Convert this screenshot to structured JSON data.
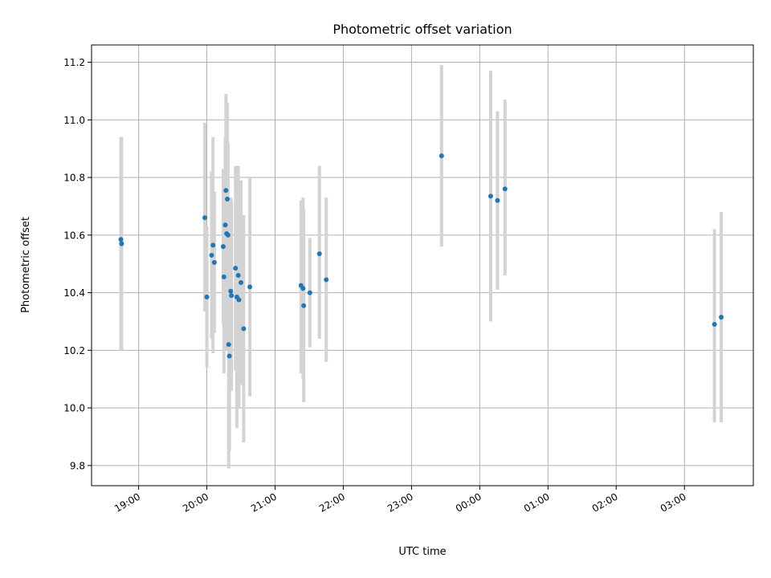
{
  "chart_data": {
    "type": "scatter",
    "title": "Photometric offset variation",
    "xlabel": "UTC time",
    "ylabel": "Photometric offset",
    "x_tick_labels": [
      "19:00",
      "20:00",
      "21:00",
      "22:00",
      "23:00",
      "00:00",
      "01:00",
      "02:00",
      "03:00"
    ],
    "x_ticks_hours": [
      19,
      20,
      21,
      22,
      23,
      24,
      25,
      26,
      27
    ],
    "xlim_hours": [
      18.31,
      28.01
    ],
    "ylim": [
      9.73,
      11.26
    ],
    "y_ticks": [
      9.8,
      10.0,
      10.2,
      10.4,
      10.6,
      10.8,
      11.0,
      11.2
    ],
    "y_tick_labels": [
      "9.8",
      "10.0",
      "10.2",
      "10.4",
      "10.6",
      "10.8",
      "11.0",
      "11.2"
    ],
    "grid": true,
    "colors": {
      "point": "#1f77b4",
      "error_bar": "#d3d3d3",
      "grid": "#b0b0b0"
    },
    "points": [
      {
        "x": 18.74,
        "y": 10.585,
        "err_lo": 10.2,
        "err_hi": 10.94
      },
      {
        "x": 18.75,
        "y": 10.57,
        "err_lo": 10.2,
        "err_hi": 10.94
      },
      {
        "x": 19.97,
        "y": 10.66,
        "err_lo": 10.335,
        "err_hi": 10.99
      },
      {
        "x": 20.0,
        "y": 10.385,
        "err_lo": 10.14,
        "err_hi": 10.63
      },
      {
        "x": 20.07,
        "y": 10.53,
        "err_lo": 10.24,
        "err_hi": 10.82
      },
      {
        "x": 20.09,
        "y": 10.565,
        "err_lo": 10.19,
        "err_hi": 10.94
      },
      {
        "x": 20.11,
        "y": 10.505,
        "err_lo": 10.26,
        "err_hi": 10.75
      },
      {
        "x": 20.24,
        "y": 10.56,
        "err_lo": 10.29,
        "err_hi": 10.83
      },
      {
        "x": 20.25,
        "y": 10.455,
        "err_lo": 10.12,
        "err_hi": 10.79
      },
      {
        "x": 20.27,
        "y": 10.635,
        "err_lo": 10.33,
        "err_hi": 10.94
      },
      {
        "x": 20.28,
        "y": 10.755,
        "err_lo": 10.42,
        "err_hi": 11.09
      },
      {
        "x": 20.29,
        "y": 10.605,
        "err_lo": 10.2,
        "err_hi": 11.01
      },
      {
        "x": 20.3,
        "y": 10.725,
        "err_lo": 10.39,
        "err_hi": 11.06
      },
      {
        "x": 20.31,
        "y": 10.6,
        "err_lo": 10.28,
        "err_hi": 10.92
      },
      {
        "x": 20.32,
        "y": 10.22,
        "err_lo": 9.79,
        "err_hi": 10.65
      },
      {
        "x": 20.33,
        "y": 10.18,
        "err_lo": 9.85,
        "err_hi": 10.51
      },
      {
        "x": 20.35,
        "y": 10.405,
        "err_lo": 10.08,
        "err_hi": 10.73
      },
      {
        "x": 20.36,
        "y": 10.39,
        "err_lo": 10.06,
        "err_hi": 10.72
      },
      {
        "x": 20.42,
        "y": 10.485,
        "err_lo": 10.13,
        "err_hi": 10.84
      },
      {
        "x": 20.44,
        "y": 10.385,
        "err_lo": 9.93,
        "err_hi": 10.84
      },
      {
        "x": 20.46,
        "y": 10.46,
        "err_lo": 10.08,
        "err_hi": 10.84
      },
      {
        "x": 20.47,
        "y": 10.375,
        "err_lo": 10.0,
        "err_hi": 10.75
      },
      {
        "x": 20.5,
        "y": 10.435,
        "err_lo": 10.08,
        "err_hi": 10.79
      },
      {
        "x": 20.54,
        "y": 10.275,
        "err_lo": 9.88,
        "err_hi": 10.67
      },
      {
        "x": 20.63,
        "y": 10.42,
        "err_lo": 10.04,
        "err_hi": 10.8
      },
      {
        "x": 21.38,
        "y": 10.425,
        "err_lo": 10.12,
        "err_hi": 10.72
      },
      {
        "x": 21.41,
        "y": 10.415,
        "err_lo": 10.1,
        "err_hi": 10.73
      },
      {
        "x": 21.42,
        "y": 10.355,
        "err_lo": 10.02,
        "err_hi": 10.69
      },
      {
        "x": 21.51,
        "y": 10.4,
        "err_lo": 10.21,
        "err_hi": 10.59
      },
      {
        "x": 21.65,
        "y": 10.535,
        "err_lo": 10.24,
        "err_hi": 10.84
      },
      {
        "x": 21.75,
        "y": 10.445,
        "err_lo": 10.16,
        "err_hi": 10.73
      },
      {
        "x": 23.44,
        "y": 10.875,
        "err_lo": 10.56,
        "err_hi": 11.19
      },
      {
        "x": 24.16,
        "y": 10.735,
        "err_lo": 10.3,
        "err_hi": 11.17
      },
      {
        "x": 24.26,
        "y": 10.72,
        "err_lo": 10.41,
        "err_hi": 11.03
      },
      {
        "x": 24.37,
        "y": 10.76,
        "err_lo": 10.46,
        "err_hi": 11.07
      },
      {
        "x": 27.44,
        "y": 10.29,
        "err_lo": 9.95,
        "err_hi": 10.62
      },
      {
        "x": 27.54,
        "y": 10.315,
        "err_lo": 9.95,
        "err_hi": 10.68
      }
    ]
  }
}
